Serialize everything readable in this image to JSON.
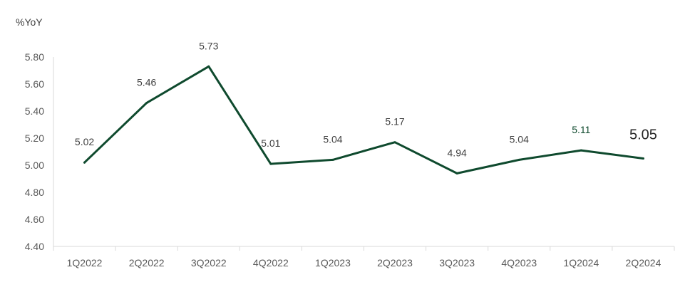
{
  "chart_data": {
    "type": "line",
    "ylabel": "%YoY",
    "categories": [
      "1Q2022",
      "2Q2022",
      "3Q2022",
      "4Q2022",
      "1Q2023",
      "2Q2023",
      "3Q2023",
      "4Q2023",
      "1Q2024",
      "2Q2024"
    ],
    "series": [
      {
        "values": [
          5.02,
          5.46,
          5.73,
          5.01,
          5.04,
          5.17,
          4.94,
          5.04,
          5.11,
          5.05
        ],
        "color": "#0f4a2e"
      }
    ],
    "data_labels": [
      "5.02",
      "5.46",
      "5.73",
      "5.01",
      "5.04",
      "5.17",
      "4.94",
      "5.04",
      "5.11",
      "5.05"
    ],
    "data_label_colors": [
      "#404040",
      "#404040",
      "#404040",
      "#404040",
      "#404040",
      "#404040",
      "#404040",
      "#404040",
      "#0f4a2e",
      "#262626"
    ],
    "yticks": [
      "4.40",
      "4.60",
      "4.80",
      "5.00",
      "5.20",
      "5.40",
      "5.60",
      "5.80"
    ],
    "ylim": [
      4.4,
      5.8
    ],
    "grid": false,
    "legend": "none"
  }
}
